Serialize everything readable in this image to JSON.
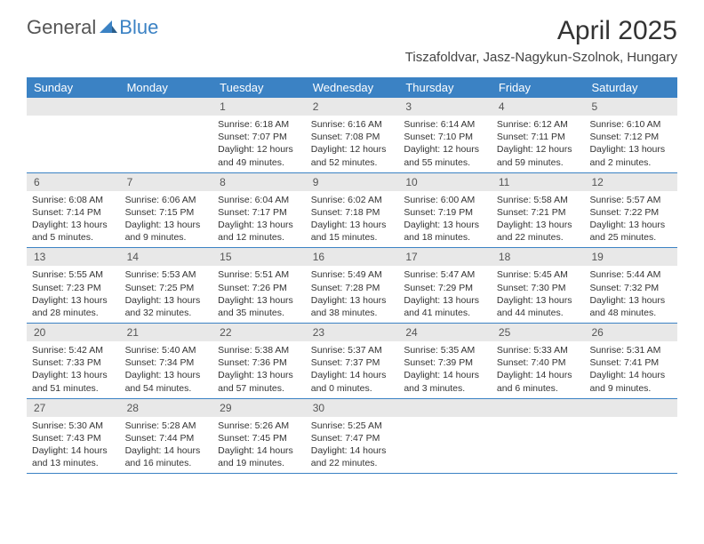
{
  "logo": {
    "general": "General",
    "blue": "Blue"
  },
  "title": "April 2025",
  "location": "Tiszafoldvar, Jasz-Nagykun-Szolnok, Hungary",
  "colors": {
    "header_bg": "#3b82c4",
    "header_text": "#ffffff",
    "daynum_bg": "#e8e8e8",
    "daynum_text": "#555555",
    "body_text": "#333333",
    "row_border": "#3b82c4",
    "page_bg": "#ffffff",
    "logo_gray": "#555555",
    "logo_blue": "#3b82c4"
  },
  "typography": {
    "title_fontsize": 30,
    "location_fontsize": 15,
    "dayhead_fontsize": 13,
    "daynum_fontsize": 12,
    "body_fontsize": 10.5,
    "font_family": "Arial"
  },
  "day_headers": [
    "Sunday",
    "Monday",
    "Tuesday",
    "Wednesday",
    "Thursday",
    "Friday",
    "Saturday"
  ],
  "weeks": [
    [
      {
        "num": "",
        "sunrise": "",
        "sunset": "",
        "daylight": ""
      },
      {
        "num": "",
        "sunrise": "",
        "sunset": "",
        "daylight": ""
      },
      {
        "num": "1",
        "sunrise": "Sunrise: 6:18 AM",
        "sunset": "Sunset: 7:07 PM",
        "daylight": "Daylight: 12 hours and 49 minutes."
      },
      {
        "num": "2",
        "sunrise": "Sunrise: 6:16 AM",
        "sunset": "Sunset: 7:08 PM",
        "daylight": "Daylight: 12 hours and 52 minutes."
      },
      {
        "num": "3",
        "sunrise": "Sunrise: 6:14 AM",
        "sunset": "Sunset: 7:10 PM",
        "daylight": "Daylight: 12 hours and 55 minutes."
      },
      {
        "num": "4",
        "sunrise": "Sunrise: 6:12 AM",
        "sunset": "Sunset: 7:11 PM",
        "daylight": "Daylight: 12 hours and 59 minutes."
      },
      {
        "num": "5",
        "sunrise": "Sunrise: 6:10 AM",
        "sunset": "Sunset: 7:12 PM",
        "daylight": "Daylight: 13 hours and 2 minutes."
      }
    ],
    [
      {
        "num": "6",
        "sunrise": "Sunrise: 6:08 AM",
        "sunset": "Sunset: 7:14 PM",
        "daylight": "Daylight: 13 hours and 5 minutes."
      },
      {
        "num": "7",
        "sunrise": "Sunrise: 6:06 AM",
        "sunset": "Sunset: 7:15 PM",
        "daylight": "Daylight: 13 hours and 9 minutes."
      },
      {
        "num": "8",
        "sunrise": "Sunrise: 6:04 AM",
        "sunset": "Sunset: 7:17 PM",
        "daylight": "Daylight: 13 hours and 12 minutes."
      },
      {
        "num": "9",
        "sunrise": "Sunrise: 6:02 AM",
        "sunset": "Sunset: 7:18 PM",
        "daylight": "Daylight: 13 hours and 15 minutes."
      },
      {
        "num": "10",
        "sunrise": "Sunrise: 6:00 AM",
        "sunset": "Sunset: 7:19 PM",
        "daylight": "Daylight: 13 hours and 18 minutes."
      },
      {
        "num": "11",
        "sunrise": "Sunrise: 5:58 AM",
        "sunset": "Sunset: 7:21 PM",
        "daylight": "Daylight: 13 hours and 22 minutes."
      },
      {
        "num": "12",
        "sunrise": "Sunrise: 5:57 AM",
        "sunset": "Sunset: 7:22 PM",
        "daylight": "Daylight: 13 hours and 25 minutes."
      }
    ],
    [
      {
        "num": "13",
        "sunrise": "Sunrise: 5:55 AM",
        "sunset": "Sunset: 7:23 PM",
        "daylight": "Daylight: 13 hours and 28 minutes."
      },
      {
        "num": "14",
        "sunrise": "Sunrise: 5:53 AM",
        "sunset": "Sunset: 7:25 PM",
        "daylight": "Daylight: 13 hours and 32 minutes."
      },
      {
        "num": "15",
        "sunrise": "Sunrise: 5:51 AM",
        "sunset": "Sunset: 7:26 PM",
        "daylight": "Daylight: 13 hours and 35 minutes."
      },
      {
        "num": "16",
        "sunrise": "Sunrise: 5:49 AM",
        "sunset": "Sunset: 7:28 PM",
        "daylight": "Daylight: 13 hours and 38 minutes."
      },
      {
        "num": "17",
        "sunrise": "Sunrise: 5:47 AM",
        "sunset": "Sunset: 7:29 PM",
        "daylight": "Daylight: 13 hours and 41 minutes."
      },
      {
        "num": "18",
        "sunrise": "Sunrise: 5:45 AM",
        "sunset": "Sunset: 7:30 PM",
        "daylight": "Daylight: 13 hours and 44 minutes."
      },
      {
        "num": "19",
        "sunrise": "Sunrise: 5:44 AM",
        "sunset": "Sunset: 7:32 PM",
        "daylight": "Daylight: 13 hours and 48 minutes."
      }
    ],
    [
      {
        "num": "20",
        "sunrise": "Sunrise: 5:42 AM",
        "sunset": "Sunset: 7:33 PM",
        "daylight": "Daylight: 13 hours and 51 minutes."
      },
      {
        "num": "21",
        "sunrise": "Sunrise: 5:40 AM",
        "sunset": "Sunset: 7:34 PM",
        "daylight": "Daylight: 13 hours and 54 minutes."
      },
      {
        "num": "22",
        "sunrise": "Sunrise: 5:38 AM",
        "sunset": "Sunset: 7:36 PM",
        "daylight": "Daylight: 13 hours and 57 minutes."
      },
      {
        "num": "23",
        "sunrise": "Sunrise: 5:37 AM",
        "sunset": "Sunset: 7:37 PM",
        "daylight": "Daylight: 14 hours and 0 minutes."
      },
      {
        "num": "24",
        "sunrise": "Sunrise: 5:35 AM",
        "sunset": "Sunset: 7:39 PM",
        "daylight": "Daylight: 14 hours and 3 minutes."
      },
      {
        "num": "25",
        "sunrise": "Sunrise: 5:33 AM",
        "sunset": "Sunset: 7:40 PM",
        "daylight": "Daylight: 14 hours and 6 minutes."
      },
      {
        "num": "26",
        "sunrise": "Sunrise: 5:31 AM",
        "sunset": "Sunset: 7:41 PM",
        "daylight": "Daylight: 14 hours and 9 minutes."
      }
    ],
    [
      {
        "num": "27",
        "sunrise": "Sunrise: 5:30 AM",
        "sunset": "Sunset: 7:43 PM",
        "daylight": "Daylight: 14 hours and 13 minutes."
      },
      {
        "num": "28",
        "sunrise": "Sunrise: 5:28 AM",
        "sunset": "Sunset: 7:44 PM",
        "daylight": "Daylight: 14 hours and 16 minutes."
      },
      {
        "num": "29",
        "sunrise": "Sunrise: 5:26 AM",
        "sunset": "Sunset: 7:45 PM",
        "daylight": "Daylight: 14 hours and 19 minutes."
      },
      {
        "num": "30",
        "sunrise": "Sunrise: 5:25 AM",
        "sunset": "Sunset: 7:47 PM",
        "daylight": "Daylight: 14 hours and 22 minutes."
      },
      {
        "num": "",
        "sunrise": "",
        "sunset": "",
        "daylight": ""
      },
      {
        "num": "",
        "sunrise": "",
        "sunset": "",
        "daylight": ""
      },
      {
        "num": "",
        "sunrise": "",
        "sunset": "",
        "daylight": ""
      }
    ]
  ]
}
